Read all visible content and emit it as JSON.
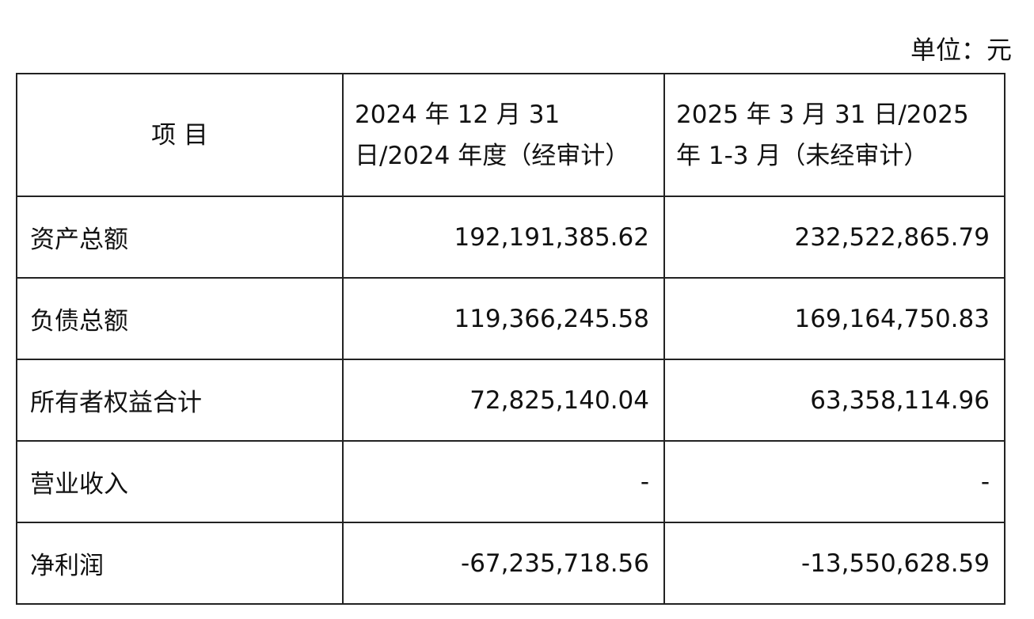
{
  "unit": "单位：元",
  "table": {
    "header": [
      "项 目",
      "2024 年 12 月 31 日/2024 年度（经审计）",
      "2025 年 3 月 31 日/2025 年 1-3 月（未经审计）"
    ],
    "rows": [
      [
        "资产总额",
        "192,191,385.62",
        "232,522,865.79"
      ],
      [
        "负债总额",
        "119,366,245.58",
        "169,164,750.83"
      ],
      [
        "所有者权益合计",
        "72,825,140.04",
        "63,358,114.96"
      ],
      [
        "营业收入",
        "-",
        "-"
      ],
      [
        "净利润",
        "-67,235,718.56",
        "-13,550,628.59"
      ]
    ]
  }
}
